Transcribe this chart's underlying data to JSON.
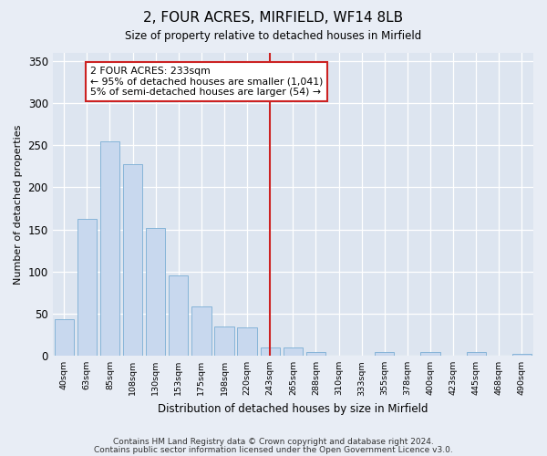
{
  "title": "2, FOUR ACRES, MIRFIELD, WF14 8LB",
  "subtitle": "Size of property relative to detached houses in Mirfield",
  "xlabel": "Distribution of detached houses by size in Mirfield",
  "ylabel": "Number of detached properties",
  "bar_color": "#c8d8ee",
  "bar_edgecolor": "#7aaed4",
  "vline_color": "#cc2222",
  "annotation_text1": "2 FOUR ACRES: 233sqm",
  "annotation_text2": "← 95% of detached houses are smaller (1,041)",
  "annotation_text3": "5% of semi-detached houses are larger (54) →",
  "annotation_box_edgecolor": "#cc2222",
  "categories": [
    "40sqm",
    "63sqm",
    "85sqm",
    "108sqm",
    "130sqm",
    "153sqm",
    "175sqm",
    "198sqm",
    "220sqm",
    "243sqm",
    "265sqm",
    "288sqm",
    "310sqm",
    "333sqm",
    "355sqm",
    "378sqm",
    "400sqm",
    "423sqm",
    "445sqm",
    "468sqm",
    "490sqm"
  ],
  "values": [
    43,
    163,
    255,
    227,
    152,
    95,
    59,
    35,
    34,
    10,
    10,
    5,
    0,
    0,
    5,
    0,
    4,
    0,
    5,
    0,
    2
  ],
  "ylim": [
    0,
    360
  ],
  "yticks": [
    0,
    50,
    100,
    150,
    200,
    250,
    300,
    350
  ],
  "footnote1": "Contains HM Land Registry data © Crown copyright and database right 2024.",
  "footnote2": "Contains public sector information licensed under the Open Government Licence v3.0.",
  "bg_color": "#e8edf5",
  "plot_bg_color": "#dde5f0"
}
